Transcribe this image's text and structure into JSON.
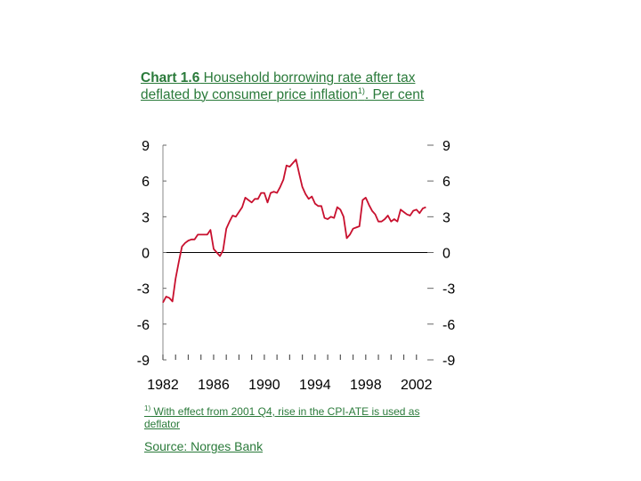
{
  "title": {
    "prefix": "Chart 1.6",
    "text": " Household borrowing rate after tax deflated by consumer price inflation",
    "superscript": "1)",
    "suffix": ". Per cent"
  },
  "footnote": {
    "marker": "1)",
    "text": " With effect from 2001 Q4, rise in the CPI-ATE is used as deflator"
  },
  "source": "Source: Norges Bank",
  "chart_data": {
    "type": "line",
    "title": "Household borrowing rate after tax deflated by consumer price inflation. Per cent",
    "xlabel": "",
    "ylabel": "",
    "xlim": [
      1982,
      2003
    ],
    "ylim": [
      -9,
      9
    ],
    "y_ticks": [
      9,
      6,
      3,
      0,
      -3,
      -6,
      -9
    ],
    "x_tick_labels": [
      "1982",
      "1986",
      "1990",
      "1994",
      "1998",
      "2002"
    ],
    "x_minor_ticks": [
      1983,
      1984,
      1985,
      1987,
      1988,
      1989,
      1991,
      1992,
      1993,
      1995,
      1996,
      1997,
      1999,
      2000,
      2001
    ],
    "grid": false,
    "line_color": "#c8102e",
    "series": [
      {
        "x": [
          1982.0,
          1982.25,
          1982.5,
          1982.75,
          1983.0,
          1983.25,
          1983.5,
          1983.75,
          1984.0,
          1984.25,
          1984.5,
          1984.75,
          1985.0,
          1985.25,
          1985.5,
          1985.75,
          1986.0,
          1986.25,
          1986.5,
          1986.75,
          1987.0,
          1987.25,
          1987.5,
          1987.75,
          1988.0,
          1988.25,
          1988.5,
          1988.75,
          1989.0,
          1989.25,
          1989.5,
          1989.75,
          1990.0,
          1990.25,
          1990.5,
          1990.75,
          1991.0,
          1991.25,
          1991.5,
          1991.75,
          1992.0,
          1992.25,
          1992.5,
          1992.75,
          1993.0,
          1993.25,
          1993.5,
          1993.75,
          1994.0,
          1994.25,
          1994.5,
          1994.75,
          1995.0,
          1995.25,
          1995.5,
          1995.75,
          1996.0,
          1996.25,
          1996.5,
          1996.75,
          1997.0,
          1997.25,
          1997.5,
          1997.75,
          1998.0,
          1998.25,
          1998.5,
          1998.75,
          1999.0,
          1999.25,
          1999.5,
          1999.75,
          2000.0,
          2000.25,
          2000.5,
          2000.75,
          2001.0,
          2001.25,
          2001.5,
          2001.75,
          2002.0,
          2002.25,
          2002.5,
          2002.75
        ],
        "y": [
          -4.2,
          -3.7,
          -3.8,
          -4.1,
          -2.2,
          -0.8,
          0.5,
          0.8,
          1.0,
          1.1,
          1.1,
          1.5,
          1.5,
          1.5,
          1.5,
          1.9,
          0.3,
          0.0,
          -0.3,
          0.2,
          2.0,
          2.6,
          3.1,
          3.0,
          3.4,
          3.8,
          4.6,
          4.4,
          4.2,
          4.5,
          4.5,
          5.0,
          5.0,
          4.2,
          5.0,
          5.1,
          5.0,
          5.5,
          6.1,
          7.3,
          7.2,
          7.5,
          7.8,
          6.6,
          5.5,
          4.9,
          4.5,
          4.7,
          4.1,
          3.9,
          3.9,
          2.9,
          2.8,
          3.0,
          2.9,
          3.8,
          3.6,
          3.0,
          1.2,
          1.5,
          2.0,
          2.1,
          2.2,
          4.4,
          4.6,
          4.0,
          3.5,
          3.2,
          2.6,
          2.6,
          2.8,
          3.1,
          2.6,
          2.8,
          2.6,
          3.6,
          3.4,
          3.2,
          3.1,
          3.5,
          3.6,
          3.3,
          3.7,
          3.8
        ]
      }
    ]
  }
}
